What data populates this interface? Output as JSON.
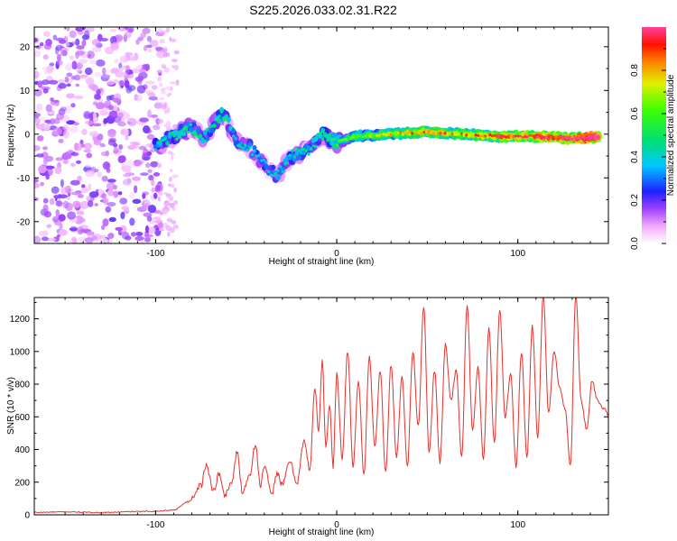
{
  "title": "S225.2026.033.02.31.R22",
  "chart_data": [
    {
      "type": "heatmap",
      "xlabel": "Height of straight line (km)",
      "ylabel": "Frequency (Hz)",
      "xlim": [
        -167,
        150
      ],
      "ylim": [
        -25,
        24.5
      ],
      "xticks": [
        -100,
        0,
        100
      ],
      "yticks": [
        20,
        10,
        0,
        -10,
        -20
      ],
      "colorbar": {
        "label": "Normalized spectral amplitude",
        "range": [
          0,
          1
        ],
        "ticks": [
          "0.0",
          "0.2",
          "0.4",
          "0.6",
          "0.8"
        ],
        "colors": [
          "#ffffff",
          "#f2a8ff",
          "#a040ff",
          "#2020ff",
          "#00c8ff",
          "#00e060",
          "#c0ff00",
          "#ff8000",
          "#ff0000"
        ]
      },
      "signal_track": [
        {
          "x": -100,
          "freq": -2.5,
          "amp": 0.25
        },
        {
          "x": -88,
          "freq": 0,
          "amp": 0.3
        },
        {
          "x": -80,
          "freq": 1.5,
          "amp": 0.28
        },
        {
          "x": -73,
          "freq": -1,
          "amp": 0.25
        },
        {
          "x": -63,
          "freq": 5,
          "amp": 0.3
        },
        {
          "x": -55,
          "freq": -2,
          "amp": 0.22
        },
        {
          "x": -48,
          "freq": -3,
          "amp": 0.22
        },
        {
          "x": -40,
          "freq": -7,
          "amp": 0.2
        },
        {
          "x": -33,
          "freq": -9.5,
          "amp": 0.22
        },
        {
          "x": -25,
          "freq": -5,
          "amp": 0.25
        },
        {
          "x": -15,
          "freq": -3.5,
          "amp": 0.28
        },
        {
          "x": -8,
          "freq": 0,
          "amp": 0.3
        },
        {
          "x": 0,
          "freq": -2,
          "amp": 0.35
        },
        {
          "x": 10,
          "freq": -0.5,
          "amp": 0.45
        },
        {
          "x": 30,
          "freq": 0,
          "amp": 0.55
        },
        {
          "x": 50,
          "freq": 0.5,
          "amp": 0.65
        },
        {
          "x": 70,
          "freq": 0,
          "amp": 0.6
        },
        {
          "x": 90,
          "freq": -0.5,
          "amp": 0.7
        },
        {
          "x": 110,
          "freq": -0.5,
          "amp": 0.75
        },
        {
          "x": 130,
          "freq": -1,
          "amp": 0.85
        },
        {
          "x": 145,
          "freq": -0.5,
          "amp": 0.95
        }
      ]
    },
    {
      "type": "line",
      "xlabel": "Height of straight line (km)",
      "ylabel": "SNR (10 * v/v)",
      "xlim": [
        -167,
        150
      ],
      "ylim": [
        0,
        1330
      ],
      "xticks": [
        -100,
        0,
        100
      ],
      "yticks": [
        0,
        200,
        400,
        600,
        800,
        1000,
        1200
      ],
      "line_color": "#e8302c",
      "series": [
        {
          "x": [
            -167,
            -150,
            -130,
            -110,
            -100,
            -90,
            -82,
            -75,
            -72,
            -68,
            -65,
            -62,
            -58,
            -55,
            -52,
            -48,
            -45,
            -42,
            -40,
            -36,
            -33,
            -30,
            -26,
            -22,
            -18,
            -15,
            -12,
            -10,
            -8,
            -6,
            -4,
            -2,
            0,
            3,
            6,
            9,
            12,
            15,
            18,
            21,
            24,
            27,
            30,
            33,
            36,
            39,
            42,
            45,
            48,
            51,
            54,
            57,
            60,
            63,
            66,
            69,
            72,
            75,
            78,
            81,
            84,
            87,
            90,
            93,
            96,
            99,
            102,
            105,
            108,
            111,
            114,
            117,
            120,
            123,
            126,
            129,
            132,
            135,
            138,
            141,
            144,
            147,
            150
          ],
          "y": [
            15,
            18,
            14,
            20,
            22,
            30,
            80,
            180,
            300,
            150,
            250,
            120,
            200,
            380,
            140,
            250,
            430,
            180,
            300,
            120,
            260,
            180,
            330,
            200,
            450,
            280,
            780,
            500,
            950,
            400,
            680,
            300,
            860,
            350,
            1000,
            300,
            820,
            250,
            960,
            420,
            880,
            260,
            920,
            360,
            840,
            300,
            1000,
            540,
            1280,
            380,
            880,
            320,
            1050,
            700,
            880,
            360,
            1280,
            520,
            900,
            340,
            1140,
            440,
            1260,
            600,
            860,
            300,
            1000,
            350,
            1150,
            480,
            1340,
            620,
            1000,
            780,
            650,
            300,
            1340,
            700,
            520,
            820,
            700,
            650,
            620
          ]
        }
      ]
    }
  ]
}
